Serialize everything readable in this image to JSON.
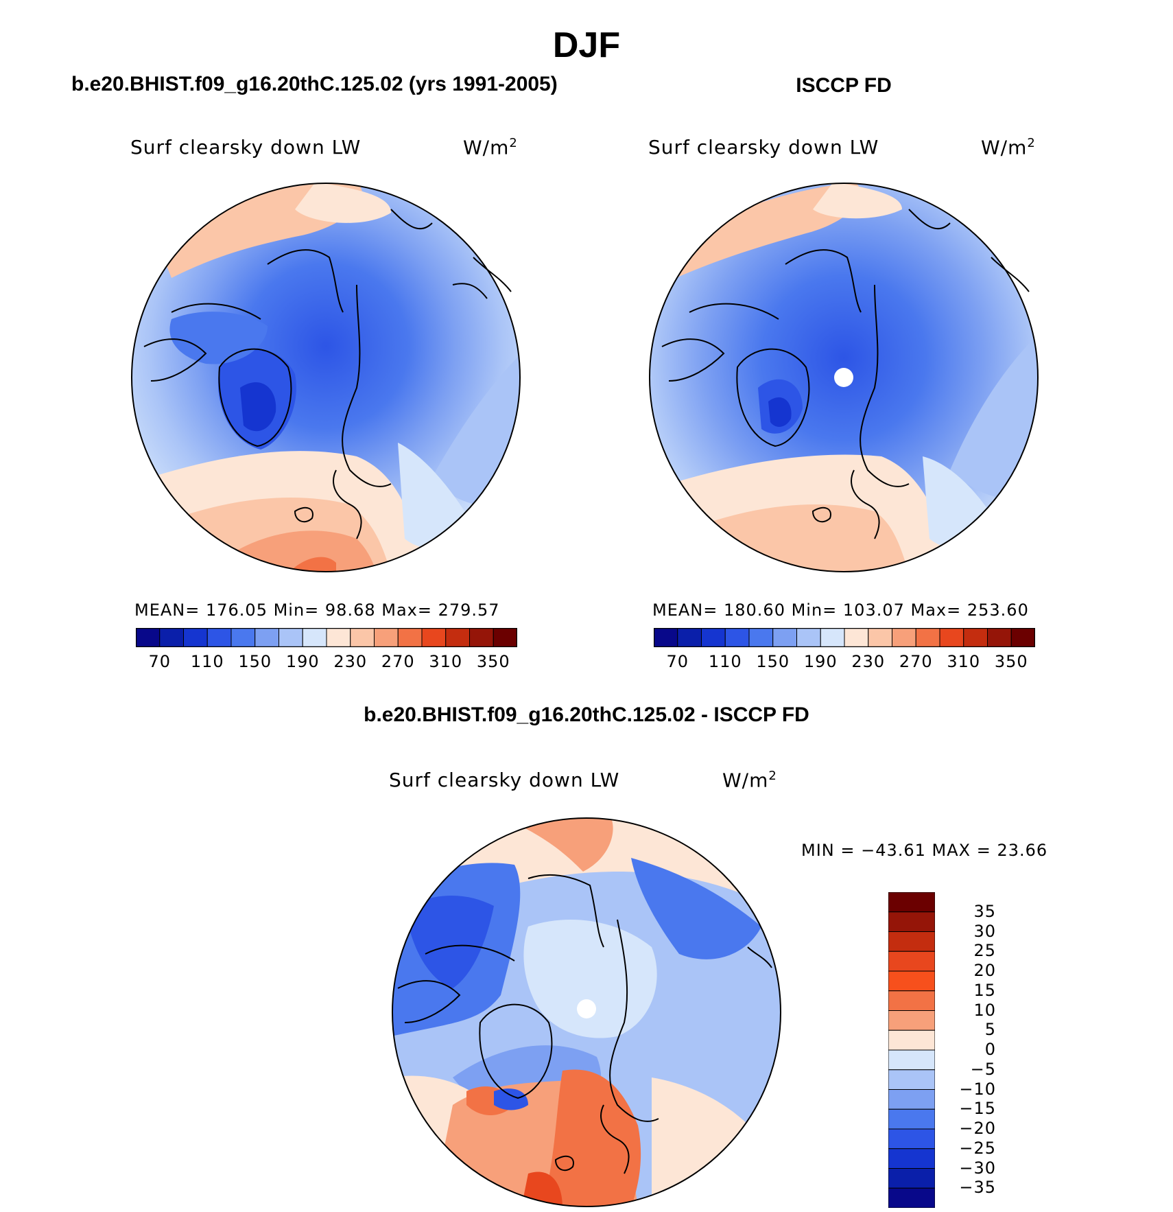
{
  "figure": {
    "title": "DJF",
    "panels": [
      {
        "id": "case",
        "header": "b.e20.BHIST.f09_g16.20thC.125.02 (yrs 1991-2005)",
        "variable": "Surf clearsky down LW",
        "units": "W/m",
        "units_exponent": "2",
        "stats_text": "MEAN= 176.05   Min=   98.68   Max= 279.57",
        "colorbar_labels": [
          "70",
          "110",
          "150",
          "190",
          "230",
          "270",
          "310",
          "350"
        ]
      },
      {
        "id": "obs",
        "header": "ISCCP FD",
        "variable": "Surf clearsky down LW",
        "units": "W/m",
        "units_exponent": "2",
        "stats_text": "MEAN= 180.60   Min= 103.07   Max= 253.60",
        "colorbar_labels": [
          "70",
          "110",
          "150",
          "190",
          "230",
          "270",
          "310",
          "350"
        ]
      },
      {
        "id": "diff",
        "header": "b.e20.BHIST.f09_g16.20thC.125.02 - ISCCP FD",
        "variable": "Surf clearsky down LW",
        "units": "W/m",
        "units_exponent": "2",
        "stats_text": "MIN = −43.61 MAX =   23.66",
        "colorbar_labels": [
          "35",
          "30",
          "25",
          "20",
          "15",
          "10",
          "5",
          "0",
          "−5",
          "−10",
          "−15",
          "−20",
          "−25",
          "−30",
          "−35"
        ]
      }
    ]
  },
  "colors": {
    "abs_scale": [
      "#08088a",
      "#0a1faa",
      "#1535d0",
      "#2d55e6",
      "#4a78ee",
      "#7da0f2",
      "#aac4f7",
      "#d6e6fb",
      "#fde6d6",
      "#fbc6a8",
      "#f7a07a",
      "#f27245",
      "#e8471e",
      "#c42d0f",
      "#951508",
      "#6b0000"
    ],
    "diff_scale": [
      "#6b0000",
      "#951508",
      "#c42d0f",
      "#e8471e",
      "#f7501c",
      "#f27245",
      "#f7a07a",
      "#fde6d6",
      "#d6e6fb",
      "#aac4f7",
      "#7da0f2",
      "#4a78ee",
      "#2d55e6",
      "#1535d0",
      "#0a1faa",
      "#08088a"
    ]
  }
}
